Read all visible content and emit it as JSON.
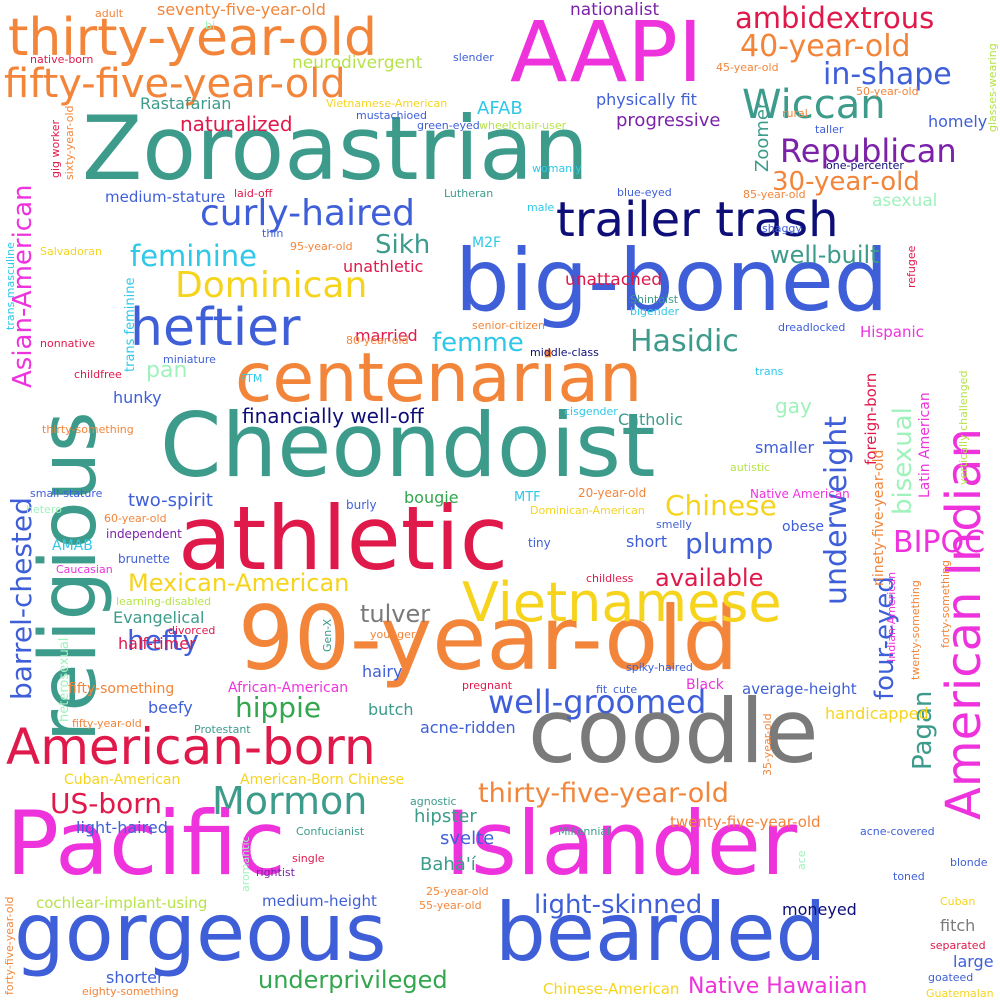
{
  "colors": {
    "magenta": "#ee33dd",
    "teal": "#3d9b8c",
    "orange": "#f2853a",
    "blue": "#3f5fd8",
    "crimson": "#e0194b",
    "navy": "#0e0e78",
    "yellow": "#f6d41e",
    "gray": "#7a7a7a",
    "green": "#33a64f",
    "purple": "#7b22a8",
    "cyan": "#30c8e8",
    "lime": "#b6e34a",
    "mint": "#9ff2bc"
  },
  "words": [
    {
      "text": "AAPI",
      "color": "magenta"
    },
    {
      "text": "Zoroastrian",
      "color": "teal"
    },
    {
      "text": "religious",
      "color": "teal"
    },
    {
      "text": "thirty-year-old",
      "color": "orange"
    },
    {
      "text": "fifty-five-year-old",
      "color": "orange"
    },
    {
      "text": "trailer trash",
      "color": "navy"
    },
    {
      "text": "big-boned",
      "color": "blue"
    },
    {
      "text": "centenarian",
      "color": "orange"
    },
    {
      "text": "Cheondoist",
      "color": "teal"
    },
    {
      "text": "athletic",
      "color": "crimson"
    },
    {
      "text": "90-year-old",
      "color": "orange"
    },
    {
      "text": "coodle",
      "color": "gray"
    },
    {
      "text": "American-born",
      "color": "crimson"
    },
    {
      "text": "Pacific",
      "color": "magenta"
    },
    {
      "text": "Islander",
      "color": "magenta"
    },
    {
      "text": "gorgeous",
      "color": "blue"
    },
    {
      "text": "bearded",
      "color": "blue"
    },
    {
      "text": "American Indian",
      "color": "magenta"
    },
    {
      "text": "Vietnamese",
      "color": "yellow"
    },
    {
      "text": "heftier",
      "color": "blue"
    },
    {
      "text": "Dominican",
      "color": "yellow"
    },
    {
      "text": "curly-haired",
      "color": "blue"
    },
    {
      "text": "Wiccan",
      "color": "teal"
    },
    {
      "text": "ambidextrous",
      "color": "crimson"
    },
    {
      "text": "40-year-old",
      "color": "orange"
    },
    {
      "text": "in-shape",
      "color": "blue"
    },
    {
      "text": "Republican",
      "color": "purple"
    },
    {
      "text": "30-year-old",
      "color": "orange"
    },
    {
      "text": "Asian-American",
      "color": "magenta"
    },
    {
      "text": "barrel-chested",
      "color": "blue"
    },
    {
      "text": "feminine",
      "color": "cyan"
    },
    {
      "text": "Sikh",
      "color": "teal"
    },
    {
      "text": "well-built",
      "color": "teal"
    },
    {
      "text": "Hasidic",
      "color": "teal"
    },
    {
      "text": "femme",
      "color": "cyan"
    },
    {
      "text": "underweight",
      "color": "blue"
    },
    {
      "text": "bisexual",
      "color": "mint"
    },
    {
      "text": "BIPOC",
      "color": "magenta"
    },
    {
      "text": "Chinese",
      "color": "yellow"
    },
    {
      "text": "plump",
      "color": "blue"
    },
    {
      "text": "Mexican-American",
      "color": "yellow"
    },
    {
      "text": "available",
      "color": "crimson"
    },
    {
      "text": "four-eyed",
      "color": "blue"
    },
    {
      "text": "Pagan",
      "color": "teal"
    },
    {
      "text": "hefty",
      "color": "blue"
    },
    {
      "text": "tulver",
      "color": "gray"
    },
    {
      "text": "hippie",
      "color": "green"
    },
    {
      "text": "well-groomed",
      "color": "blue"
    },
    {
      "text": "Mormon",
      "color": "teal"
    },
    {
      "text": "US-born",
      "color": "crimson"
    },
    {
      "text": "thirty-five-year-old",
      "color": "orange"
    },
    {
      "text": "light-skinned",
      "color": "blue"
    },
    {
      "text": "underprivileged",
      "color": "green"
    },
    {
      "text": "Native Hawaiian",
      "color": "magenta"
    },
    {
      "text": "financially well-off",
      "color": "navy"
    },
    {
      "text": "naturalized",
      "color": "crimson"
    },
    {
      "text": "progressive",
      "color": "purple"
    },
    {
      "text": "physically fit",
      "color": "blue"
    },
    {
      "text": "nationalist",
      "color": "purple"
    },
    {
      "text": "neurodivergent",
      "color": "lime"
    },
    {
      "text": "seventy-five-year-old",
      "color": "orange"
    },
    {
      "text": "Rastafarian",
      "color": "teal"
    },
    {
      "text": "AFAB",
      "color": "cyan"
    },
    {
      "text": "Zoomer",
      "color": "teal"
    },
    {
      "text": "homely",
      "color": "blue"
    },
    {
      "text": "medium-stature",
      "color": "blue"
    },
    {
      "text": "unathletic",
      "color": "crimson"
    },
    {
      "text": "unattached",
      "color": "crimson"
    },
    {
      "text": "married",
      "color": "crimson"
    },
    {
      "text": "pan",
      "color": "mint"
    },
    {
      "text": "hunky",
      "color": "blue"
    },
    {
      "text": "gay",
      "color": "mint"
    },
    {
      "text": "Catholic",
      "color": "teal"
    },
    {
      "text": "smaller",
      "color": "blue"
    },
    {
      "text": "two-spirit",
      "color": "blue"
    },
    {
      "text": "bougie",
      "color": "green"
    },
    {
      "text": "short",
      "color": "blue"
    },
    {
      "text": "Evangelical",
      "color": "teal"
    },
    {
      "text": "half-timer",
      "color": "crimson"
    },
    {
      "text": "hairy",
      "color": "blue"
    },
    {
      "text": "average-height",
      "color": "blue"
    },
    {
      "text": "beefy",
      "color": "blue"
    },
    {
      "text": "butch",
      "color": "teal"
    },
    {
      "text": "acne-ridden",
      "color": "blue"
    },
    {
      "text": "handicapped",
      "color": "yellow"
    },
    {
      "text": "hipster",
      "color": "teal"
    },
    {
      "text": "svelte",
      "color": "blue"
    },
    {
      "text": "Bahá'í",
      "color": "teal"
    },
    {
      "text": "light-haired",
      "color": "blue"
    },
    {
      "text": "twenty-five-year-old",
      "color": "orange"
    },
    {
      "text": "moneyed",
      "color": "navy"
    },
    {
      "text": "fitch",
      "color": "gray"
    },
    {
      "text": "large",
      "color": "blue"
    },
    {
      "text": "shorter",
      "color": "blue"
    },
    {
      "text": "medium-height",
      "color": "blue"
    },
    {
      "text": "cochlear-implant-using",
      "color": "lime"
    },
    {
      "text": "Chinese-American",
      "color": "yellow"
    },
    {
      "text": "Hispanic",
      "color": "magenta"
    },
    {
      "text": "foreign-born",
      "color": "crimson"
    },
    {
      "text": "Latin American",
      "color": "magenta"
    },
    {
      "text": "ninety-five-year-old",
      "color": "orange"
    },
    {
      "text": "AMAB",
      "color": "cyan"
    },
    {
      "text": "fifty-something",
      "color": "orange"
    },
    {
      "text": "African-American",
      "color": "magenta"
    },
    {
      "text": "Black",
      "color": "magenta"
    },
    {
      "text": "Cuban-American",
      "color": "yellow"
    },
    {
      "text": "American-Born Chinese",
      "color": "yellow"
    },
    {
      "text": "Native American",
      "color": "magenta"
    },
    {
      "text": "obese",
      "color": "blue"
    },
    {
      "text": "tiny",
      "color": "blue"
    },
    {
      "text": "burly",
      "color": "blue"
    },
    {
      "text": "MTF",
      "color": "cyan"
    },
    {
      "text": "20-year-old",
      "color": "orange"
    },
    {
      "text": "Dominican-American",
      "color": "yellow"
    },
    {
      "text": "brunette",
      "color": "blue"
    },
    {
      "text": "independent",
      "color": "purple"
    },
    {
      "text": "60-year-old",
      "color": "orange"
    },
    {
      "text": "Caucasian",
      "color": "magenta"
    },
    {
      "text": "childless",
      "color": "crimson"
    },
    {
      "text": "learning-disabled",
      "color": "lime"
    },
    {
      "text": "divorced",
      "color": "crimson"
    },
    {
      "text": "younger",
      "color": "orange"
    },
    {
      "text": "pregnant",
      "color": "crimson"
    },
    {
      "text": "fit",
      "color": "blue"
    },
    {
      "text": "cute",
      "color": "blue"
    },
    {
      "text": "spiky-haired",
      "color": "blue"
    },
    {
      "text": "fifty-year-old",
      "color": "orange"
    },
    {
      "text": "Protestant",
      "color": "teal"
    },
    {
      "text": "Gen-X",
      "color": "teal"
    },
    {
      "text": "heterosexual",
      "color": "mint"
    },
    {
      "text": "agnostic",
      "color": "teal"
    },
    {
      "text": "Confucianist",
      "color": "teal"
    },
    {
      "text": "Millennial",
      "color": "teal"
    },
    {
      "text": "acne-covered",
      "color": "blue"
    },
    {
      "text": "blonde",
      "color": "blue"
    },
    {
      "text": "toned",
      "color": "blue"
    },
    {
      "text": "single",
      "color": "crimson"
    },
    {
      "text": "rightist",
      "color": "purple"
    },
    {
      "text": "25-year-old",
      "color": "orange"
    },
    {
      "text": "55-year-old",
      "color": "orange"
    },
    {
      "text": "Cuban",
      "color": "yellow"
    },
    {
      "text": "separated",
      "color": "crimson"
    },
    {
      "text": "goateed",
      "color": "blue"
    },
    {
      "text": "Guatemalan",
      "color": "yellow"
    },
    {
      "text": "eighty-something",
      "color": "orange"
    },
    {
      "text": "forty-five-year-old",
      "color": "orange"
    },
    {
      "text": "aromantic",
      "color": "mint"
    },
    {
      "text": "ace",
      "color": "mint"
    },
    {
      "text": "35-year-old",
      "color": "orange"
    },
    {
      "text": "twenty-something",
      "color": "orange"
    },
    {
      "text": "forty-something",
      "color": "orange"
    },
    {
      "text": "Indian-American",
      "color": "magenta"
    },
    {
      "text": "vertically challenged",
      "color": "lime"
    },
    {
      "text": "smelly",
      "color": "blue"
    },
    {
      "text": "autistic",
      "color": "lime"
    },
    {
      "text": "cisgender",
      "color": "cyan"
    },
    {
      "text": "trans",
      "color": "cyan"
    },
    {
      "text": "middle-class",
      "color": "navy"
    },
    {
      "text": "dreadlocked",
      "color": "blue"
    },
    {
      "text": "senior-citizen",
      "color": "orange"
    },
    {
      "text": "bigender",
      "color": "cyan"
    },
    {
      "text": "Shintoist",
      "color": "teal"
    },
    {
      "text": "refugee",
      "color": "crimson"
    },
    {
      "text": "shaggy",
      "color": "blue"
    },
    {
      "text": "asexual",
      "color": "mint"
    },
    {
      "text": "85-year-old",
      "color": "orange"
    },
    {
      "text": "blue-eyed",
      "color": "blue"
    },
    {
      "text": "Lutheran",
      "color": "teal"
    },
    {
      "text": "M2F",
      "color": "cyan"
    },
    {
      "text": "male",
      "color": "cyan"
    },
    {
      "text": "womanly",
      "color": "cyan"
    },
    {
      "text": "one-percenter",
      "color": "navy"
    },
    {
      "text": "taller",
      "color": "blue"
    },
    {
      "text": "rural",
      "color": "orange"
    },
    {
      "text": "50-year-old",
      "color": "orange"
    },
    {
      "text": "45-year-old",
      "color": "orange"
    },
    {
      "text": "glasses-wearing",
      "color": "lime"
    },
    {
      "text": "slender",
      "color": "blue"
    },
    {
      "text": "bi",
      "color": "mint"
    },
    {
      "text": "adult",
      "color": "orange"
    },
    {
      "text": "native-born",
      "color": "crimson"
    },
    {
      "text": "Vietnamese-American",
      "color": "yellow"
    },
    {
      "text": "mustachioed",
      "color": "blue"
    },
    {
      "text": "green-eyed",
      "color": "blue"
    },
    {
      "text": "wheelchair-user",
      "color": "lime"
    },
    {
      "text": "sixty-year-old",
      "color": "orange"
    },
    {
      "text": "gig worker",
      "color": "crimson"
    },
    {
      "text": "laid-off",
      "color": "crimson"
    },
    {
      "text": "thin",
      "color": "blue"
    },
    {
      "text": "95-year-old",
      "color": "orange"
    },
    {
      "text": "Salvadoran",
      "color": "yellow"
    },
    {
      "text": "trans masculine",
      "color": "cyan"
    },
    {
      "text": "trans feminine",
      "color": "cyan"
    },
    {
      "text": "nonnative",
      "color": "crimson"
    },
    {
      "text": "miniature",
      "color": "blue"
    },
    {
      "text": "80-year-old",
      "color": "orange"
    },
    {
      "text": "childfree",
      "color": "crimson"
    },
    {
      "text": "FTM",
      "color": "cyan"
    },
    {
      "text": "thirty-something",
      "color": "orange"
    },
    {
      "text": "small-stature",
      "color": "blue"
    },
    {
      "text": "hetero",
      "color": "mint"
    }
  ]
}
